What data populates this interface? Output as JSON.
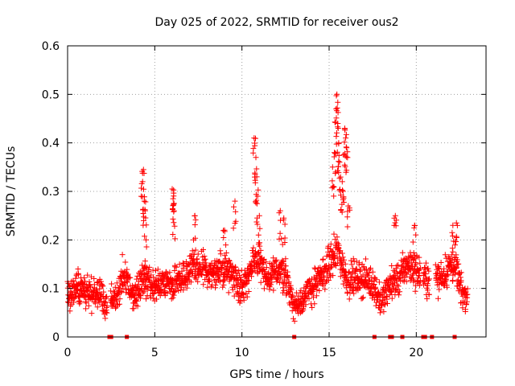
{
  "chart_data": {
    "type": "scatter",
    "title": "Day 025 of 2022, SRMTID for receiver ous2",
    "xlabel": "GPS time / hours",
    "ylabel": "SRMTID / TECUs",
    "xlim": [
      0,
      24
    ],
    "ylim": [
      0,
      0.6
    ],
    "xticks": [
      0,
      5,
      10,
      15,
      20
    ],
    "xtick_labels": [
      "0",
      "5",
      "10",
      "15",
      "20"
    ],
    "yticks": [
      0,
      0.1,
      0.2,
      0.3,
      0.4,
      0.5,
      0.6
    ],
    "ytick_labels": [
      "0",
      "0.1",
      "0.2",
      "0.3",
      "0.4",
      "0.5",
      "0.6"
    ],
    "grid": true,
    "marker": "+",
    "color": "#ff0000",
    "trend": [
      [
        0.0,
        0.09
      ],
      [
        0.5,
        0.1
      ],
      [
        1.0,
        0.095
      ],
      [
        1.5,
        0.09
      ],
      [
        1.9,
        0.09
      ],
      [
        2.1,
        0.07
      ],
      [
        2.2,
        0.06
      ],
      [
        2.5,
        0.08
      ],
      [
        2.8,
        0.08
      ],
      [
        3.0,
        0.1
      ],
      [
        3.2,
        0.13
      ],
      [
        3.5,
        0.11
      ],
      [
        3.8,
        0.08
      ],
      [
        4.0,
        0.1
      ],
      [
        4.3,
        0.12
      ],
      [
        4.6,
        0.11
      ],
      [
        5.0,
        0.1
      ],
      [
        5.5,
        0.11
      ],
      [
        6.0,
        0.11
      ],
      [
        6.5,
        0.12
      ],
      [
        7.0,
        0.14
      ],
      [
        7.5,
        0.14
      ],
      [
        8.0,
        0.14
      ],
      [
        8.5,
        0.13
      ],
      [
        9.0,
        0.14
      ],
      [
        9.5,
        0.13
      ],
      [
        10.0,
        0.1
      ],
      [
        10.5,
        0.14
      ],
      [
        11.0,
        0.16
      ],
      [
        11.5,
        0.11
      ],
      [
        12.0,
        0.14
      ],
      [
        12.5,
        0.13
      ],
      [
        13.0,
        0.06
      ],
      [
        13.5,
        0.08
      ],
      [
        14.0,
        0.1
      ],
      [
        14.5,
        0.12
      ],
      [
        15.0,
        0.15
      ],
      [
        15.5,
        0.18
      ],
      [
        16.0,
        0.12
      ],
      [
        16.5,
        0.12
      ],
      [
        17.0,
        0.12
      ],
      [
        17.5,
        0.11
      ],
      [
        18.0,
        0.07
      ],
      [
        18.5,
        0.11
      ],
      [
        19.0,
        0.12
      ],
      [
        19.5,
        0.15
      ],
      [
        19.9,
        0.14
      ],
      [
        20.5,
        0.12
      ],
      [
        21.2,
        0.12
      ],
      [
        21.6,
        0.13
      ],
      [
        22.0,
        0.15
      ],
      [
        22.3,
        0.14
      ],
      [
        22.6,
        0.09
      ],
      [
        22.9,
        0.08
      ]
    ],
    "peaks": [
      [
        0.6,
        0.14
      ],
      [
        4.35,
        0.345
      ],
      [
        4.3,
        0.32
      ],
      [
        4.4,
        0.28
      ],
      [
        4.45,
        0.26
      ],
      [
        4.5,
        0.2
      ],
      [
        6.0,
        0.305
      ],
      [
        6.05,
        0.285
      ],
      [
        6.1,
        0.26
      ],
      [
        7.3,
        0.25
      ],
      [
        9.0,
        0.22
      ],
      [
        9.6,
        0.28
      ],
      [
        10.7,
        0.41
      ],
      [
        10.8,
        0.37
      ],
      [
        10.85,
        0.33
      ],
      [
        10.9,
        0.29
      ],
      [
        11.0,
        0.25
      ],
      [
        12.2,
        0.26
      ],
      [
        12.4,
        0.245
      ],
      [
        15.2,
        0.35
      ],
      [
        15.3,
        0.38
      ],
      [
        15.4,
        0.47
      ],
      [
        15.45,
        0.5
      ],
      [
        15.5,
        0.44
      ],
      [
        15.55,
        0.4
      ],
      [
        15.6,
        0.36
      ],
      [
        15.75,
        0.32
      ],
      [
        15.8,
        0.3
      ],
      [
        15.9,
        0.43
      ],
      [
        15.95,
        0.41
      ],
      [
        16.0,
        0.39
      ],
      [
        16.1,
        0.27
      ],
      [
        18.8,
        0.25
      ],
      [
        19.9,
        0.23
      ],
      [
        22.1,
        0.23
      ],
      [
        22.3,
        0.235
      ]
    ],
    "gaps_at_zero": [
      2.4,
      2.5,
      3.4,
      13.0,
      17.6,
      18.5,
      18.6,
      19.2,
      20.4,
      20.5,
      20.9,
      22.2
    ]
  }
}
